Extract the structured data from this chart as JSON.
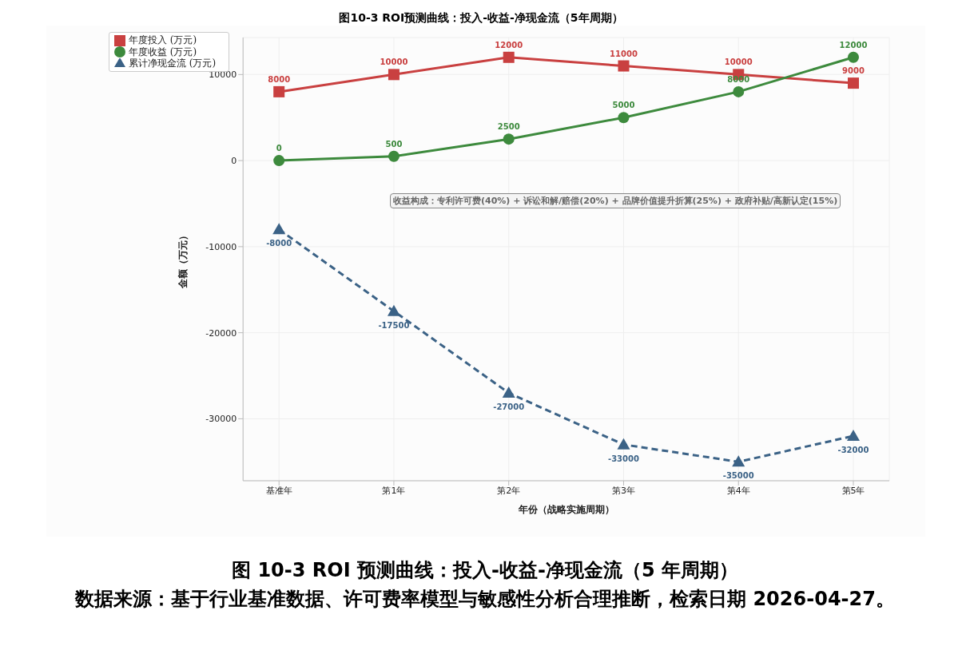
{
  "chart_data": {
    "type": "line",
    "title": "图10-3  ROI预测曲线：投入-收益-净现金流（5年周期）",
    "xlabel": "年份（战略实施周期）",
    "ylabel": "金额（万元）",
    "categories": [
      "基准年",
      "第1年",
      "第2年",
      "第3年",
      "第4年",
      "第5年"
    ],
    "series": [
      {
        "name": "年度投入 (万元)",
        "color": "#c94040",
        "marker": "square",
        "line_style": "solid",
        "values": [
          8000,
          10000,
          12000,
          11000,
          10000,
          9000
        ]
      },
      {
        "name": "年度收益 (万元)",
        "color": "#3d8a3d",
        "marker": "circle",
        "line_style": "solid",
        "values": [
          0,
          500,
          2500,
          5000,
          8000,
          12000
        ]
      },
      {
        "name": "累计净现金流 (万元)",
        "color": "#3b6286",
        "marker": "triangle",
        "line_style": "dashed",
        "values": [
          -8000,
          -17500,
          -27000,
          -33000,
          -35000,
          -32000
        ]
      }
    ],
    "ylim": [
      -37200,
      14300
    ],
    "yticks": [
      -30000,
      -20000,
      -10000,
      0,
      10000
    ],
    "grid": true,
    "legend": "top left",
    "data_labels": true,
    "annotations": [
      "收益构成：专利许可费(40%) + 诉讼和解/赔偿(20%) + 品牌价值提升折算(25%) + 政府补贴/高新认定(15%)",
      "图 10-3  ROI 预测曲线：投入-收益-净现金流（5 年周期）",
      "数据来源：基于行业基准数据、许可费率模型与敏感性分析合理推断，检索日期 2026-04-27。"
    ]
  }
}
